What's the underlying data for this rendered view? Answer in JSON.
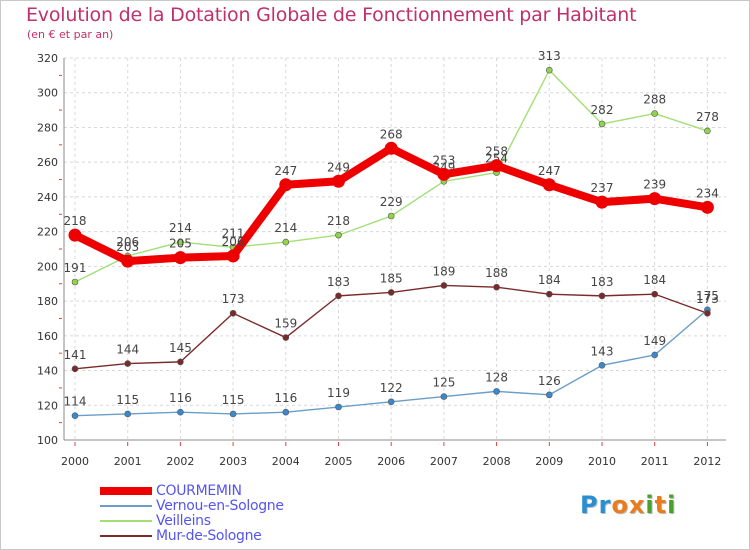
{
  "title": "Evolution de la Dotation Globale de Fonctionnement par Habitant",
  "subtitle": "(en € et par an)",
  "logo": {
    "text": "Proxiti",
    "letters": [
      "P",
      "r",
      "o",
      "x",
      "i",
      "t",
      "i"
    ],
    "colors": [
      "#2a8fd0",
      "#2a8fd0",
      "#e87d1e",
      "#e87d1e",
      "#4aa02c",
      "#e87d1e",
      "#4aa02c"
    ]
  },
  "chart_data": {
    "type": "line",
    "categories": [
      "2000",
      "2001",
      "2002",
      "2003",
      "2004",
      "2005",
      "2006",
      "2007",
      "2008",
      "2009",
      "2010",
      "2011",
      "2012"
    ],
    "ylim": [
      100,
      320
    ],
    "yticks": [
      "100",
      "120",
      "140",
      "160",
      "180",
      "200",
      "220",
      "240",
      "260",
      "280",
      "300",
      "320"
    ],
    "grid": true,
    "legend_position": "bottom-left",
    "series": [
      {
        "name": "Vernou-en-Sologne",
        "color": "#6a9ec8",
        "marker": "#3a88d0",
        "values": [
          114,
          115,
          116,
          115,
          116,
          119,
          122,
          125,
          128,
          126,
          143,
          149,
          175
        ]
      },
      {
        "name": "Veilleins",
        "color": "#a4df76",
        "marker": "#8fd44a",
        "values": [
          191,
          206,
          214,
          211,
          214,
          218,
          229,
          249,
          254,
          313,
          282,
          288,
          278
        ]
      },
      {
        "name": "Mur-de-Sologne",
        "color": "#7a2a2a",
        "marker": "#7a2a2a",
        "values": [
          141,
          144,
          145,
          173,
          159,
          183,
          185,
          189,
          188,
          184,
          183,
          184,
          173
        ]
      },
      {
        "name": "COURMEMIN",
        "color": "#ee0000",
        "marker": "#ee0000",
        "values": [
          218,
          203,
          205,
          206,
          247,
          249,
          268,
          253,
          258,
          247,
          237,
          239,
          234
        ]
      }
    ],
    "legend_order": [
      "COURMEMIN",
      "Vernou-en-Sologne",
      "Veilleins",
      "Mur-de-Sologne"
    ]
  }
}
